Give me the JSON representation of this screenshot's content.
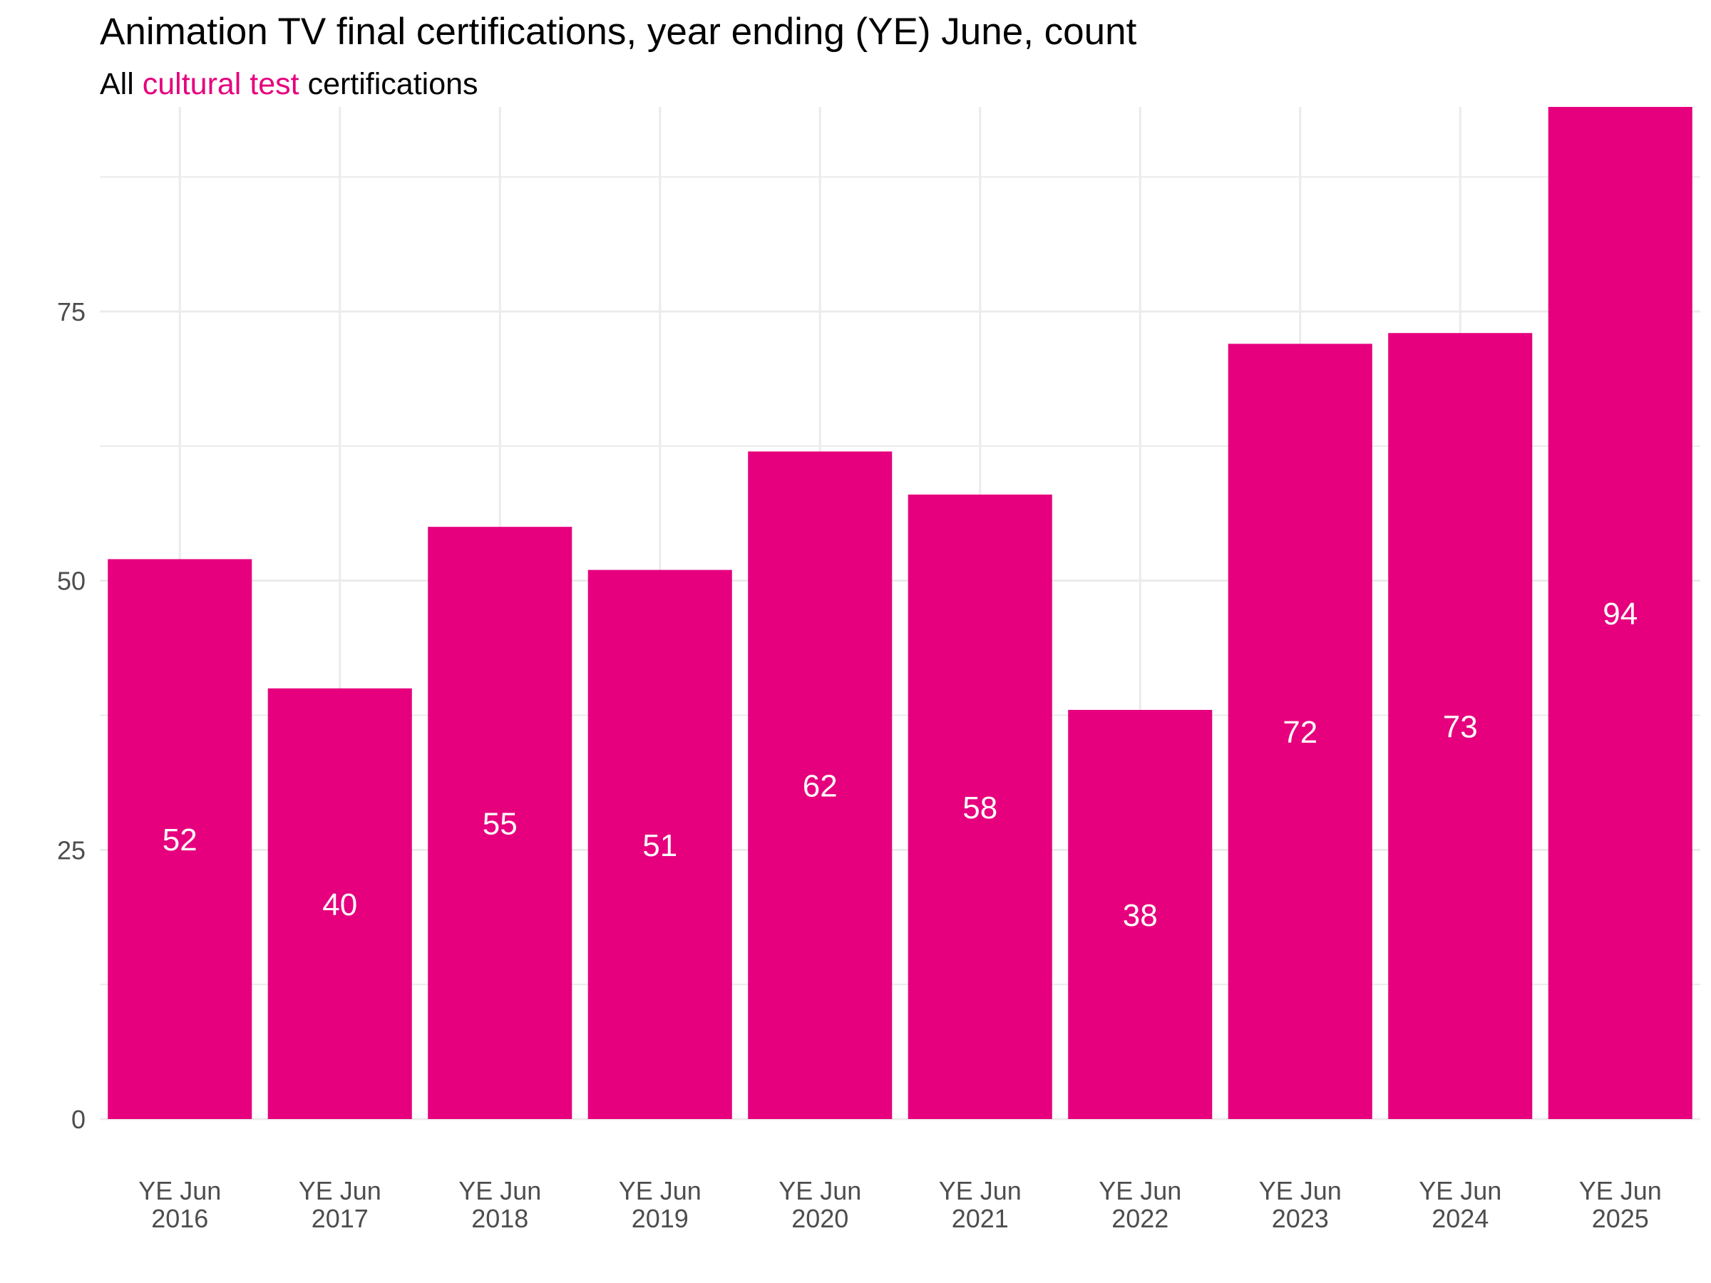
{
  "chart_data": {
    "type": "bar",
    "title": "Animation TV final certifications, year ending (YE) June, count",
    "subtitle": {
      "prefix": "All ",
      "highlight": "cultural test",
      "suffix": " certifications"
    },
    "xlabel": "",
    "ylabel": "",
    "categories": [
      [
        "YE Jun",
        "2016"
      ],
      [
        "YE Jun",
        "2017"
      ],
      [
        "YE Jun",
        "2018"
      ],
      [
        "YE Jun",
        "2019"
      ],
      [
        "YE Jun",
        "2020"
      ],
      [
        "YE Jun",
        "2021"
      ],
      [
        "YE Jun",
        "2022"
      ],
      [
        "YE Jun",
        "2023"
      ],
      [
        "YE Jun",
        "2024"
      ],
      [
        "YE Jun",
        "2025"
      ]
    ],
    "values": [
      52,
      40,
      55,
      51,
      62,
      58,
      38,
      72,
      73,
      94
    ],
    "data_labels": [
      "52",
      "40",
      "55",
      "51",
      "62",
      "58",
      "38",
      "72",
      "73",
      "94"
    ],
    "ylim": [
      0,
      94
    ],
    "yticks": [
      0,
      25,
      50,
      75
    ],
    "ytick_labels": [
      "0",
      "25",
      "50",
      "75"
    ],
    "minor_yticks": [
      12.5,
      37.5,
      62.5,
      87.5
    ],
    "grid": true,
    "legend": false,
    "colors": {
      "bar": "#e6007e",
      "highlight_text": "#e6007e",
      "grid": "#ebebeb",
      "title_text": "#000000",
      "tick_text": "#4d4d4d",
      "bar_label_text": "#ffffff"
    }
  }
}
